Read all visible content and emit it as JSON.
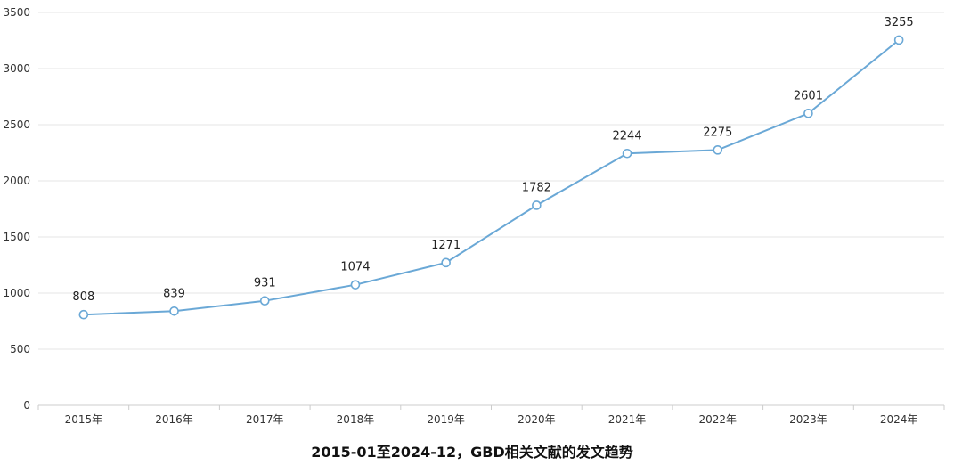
{
  "chart_data": {
    "type": "line",
    "title": "2015-01至2024-12，GBD相关文献的发文趋势",
    "categories": [
      "2015年",
      "2016年",
      "2017年",
      "2018年",
      "2019年",
      "2020年",
      "2021年",
      "2022年",
      "2023年",
      "2024年"
    ],
    "series": [
      {
        "values": [
          808,
          839,
          931,
          1074,
          1271,
          1782,
          2244,
          2275,
          2601,
          3255
        ]
      }
    ],
    "ylim": [
      0,
      3500
    ],
    "yticks": [
      0,
      500,
      1000,
      1500,
      2000,
      2500,
      3000,
      3500
    ],
    "grid": true,
    "legend": "none",
    "colors": {
      "line": "#6aa8d6",
      "marker_fill": "#ffffff",
      "grid": "#e6e6e6",
      "axis": "#cccccc"
    }
  }
}
